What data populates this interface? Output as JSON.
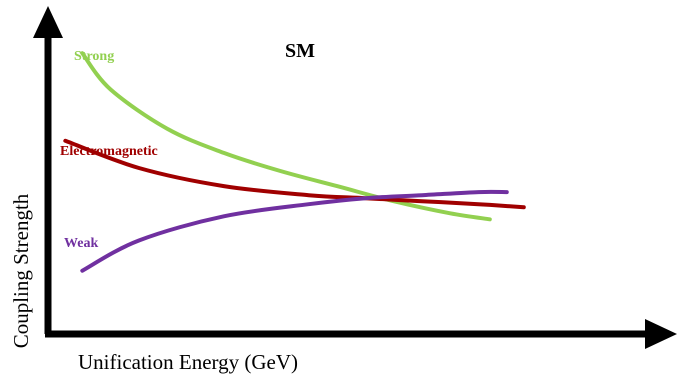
{
  "chart_data": {
    "type": "line",
    "title": "SM",
    "xlabel": "Unification Energy (GeV)",
    "ylabel": "Coupling Strength",
    "grid": false,
    "legend": "inline labels at the left of each curve",
    "x_ticks": [],
    "y_ticks": [],
    "xlim": [
      0,
      100
    ],
    "ylim": [
      0,
      100
    ],
    "series": [
      {
        "name": "Strong",
        "color": "#92d050",
        "x": [
          5,
          10,
          20,
          30,
          40,
          50,
          60,
          70,
          77
        ],
        "y": [
          89,
          77,
          64,
          56,
          50,
          45,
          40,
          36,
          34
        ]
      },
      {
        "name": "Electromagnetic",
        "color": "#a00000",
        "x": [
          2,
          15,
          30,
          45,
          55,
          65,
          75,
          83
        ],
        "y": [
          60,
          51,
          45,
          42,
          41,
          40,
          39,
          38
        ]
      },
      {
        "name": "Weak",
        "color": "#7030a0",
        "x": [
          5,
          15,
          30,
          45,
          55,
          65,
          75,
          80
        ],
        "y": [
          17,
          27,
          35,
          39,
          41,
          42,
          43,
          43
        ]
      }
    ]
  }
}
